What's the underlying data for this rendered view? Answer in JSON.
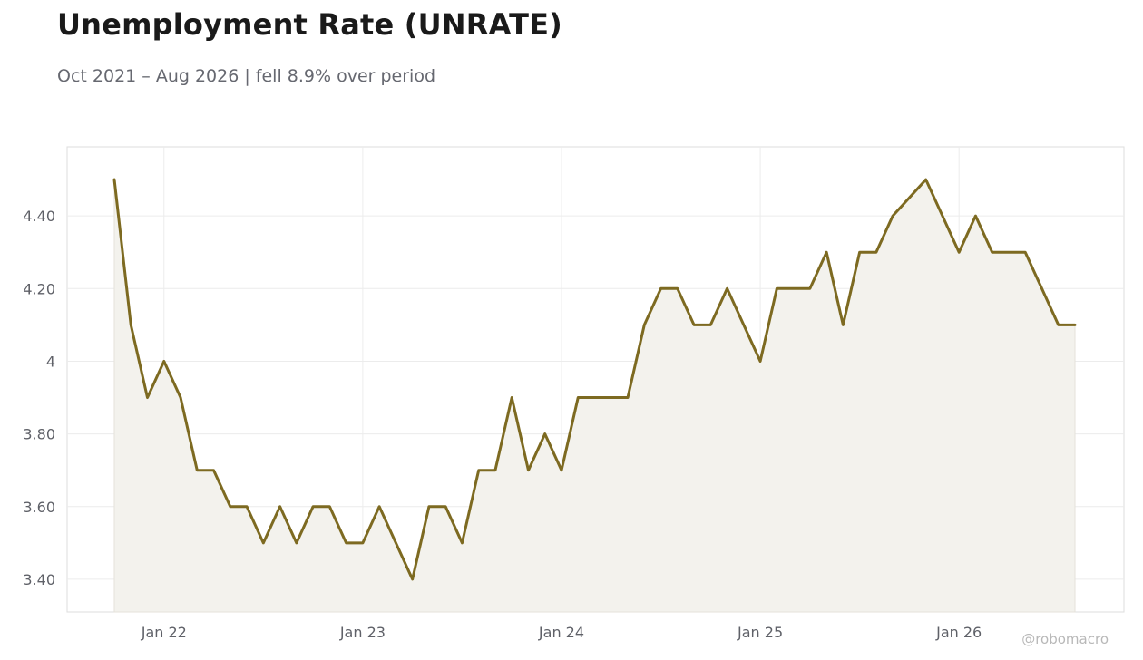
{
  "header": {
    "title": "Unemployment Rate (UNRATE)",
    "subtitle": "Oct 2021 – Aug 2026 | fell 8.9% over period"
  },
  "credit": "@robomacro",
  "colors": {
    "line": "#7d6a21",
    "fill": "#f3f2ed",
    "grid": "#ececec",
    "frame": "#dddddd",
    "tick_text": "#5f6168"
  },
  "chart_data": {
    "type": "area",
    "title": "Unemployment Rate (UNRATE)",
    "subtitle": "Oct 2021 – Aug 2026 | fell 8.9% over period",
    "xlabel": "",
    "ylabel": "",
    "x_start": "2021-10",
    "x_end": "2026-08",
    "x": [
      "2021-10",
      "2021-11",
      "2021-12",
      "2022-01",
      "2022-02",
      "2022-03",
      "2022-04",
      "2022-05",
      "2022-06",
      "2022-07",
      "2022-08",
      "2022-09",
      "2022-10",
      "2022-11",
      "2022-12",
      "2023-01",
      "2023-02",
      "2023-03",
      "2023-04",
      "2023-05",
      "2023-06",
      "2023-07",
      "2023-08",
      "2023-09",
      "2023-10",
      "2023-11",
      "2023-12",
      "2024-01",
      "2024-02",
      "2024-03",
      "2024-04",
      "2024-05",
      "2024-06",
      "2024-07",
      "2024-08",
      "2024-09",
      "2024-10",
      "2024-11",
      "2024-12",
      "2025-01",
      "2025-02",
      "2025-03",
      "2025-04",
      "2025-05",
      "2025-06",
      "2025-07",
      "2025-08",
      "2025-09",
      "2025-10",
      "2025-11",
      "2025-12",
      "2026-01",
      "2026-02",
      "2026-03",
      "2026-04",
      "2026-05",
      "2026-06",
      "2026-07",
      "2026-08"
    ],
    "series": [
      {
        "values": [
          4.5,
          4.1,
          3.9,
          4.0,
          3.9,
          3.7,
          3.7,
          3.6,
          3.6,
          3.5,
          3.6,
          3.5,
          3.6,
          3.6,
          3.5,
          3.5,
          3.6,
          3.5,
          3.4,
          3.6,
          3.6,
          3.5,
          3.7,
          3.7,
          3.9,
          3.7,
          3.8,
          3.7,
          3.9,
          3.9,
          3.9,
          3.9,
          4.1,
          4.2,
          4.2,
          4.1,
          4.1,
          4.2,
          4.1,
          4.0,
          4.2,
          4.2,
          4.2,
          4.3,
          4.1,
          4.3,
          4.3,
          4.4,
          4.45,
          4.5,
          4.4,
          4.3,
          4.4,
          4.3,
          4.3,
          4.3,
          4.2,
          4.1,
          4.1
        ]
      }
    ],
    "x_ticks": [
      "Jan 22",
      "Jan 23",
      "Jan 24",
      "Jan 25",
      "Jan 26"
    ],
    "x_tick_months": [
      "2022-01",
      "2023-01",
      "2024-01",
      "2025-01",
      "2026-01"
    ],
    "y_ticks": [
      "3.40",
      "3.60",
      "3.80",
      "4",
      "4.20",
      "4.40"
    ],
    "y_tick_values": [
      3.4,
      3.6,
      3.8,
      4.0,
      4.2,
      4.4
    ],
    "ylim": [
      3.31,
      4.59
    ],
    "grid": true,
    "legend": "none"
  }
}
